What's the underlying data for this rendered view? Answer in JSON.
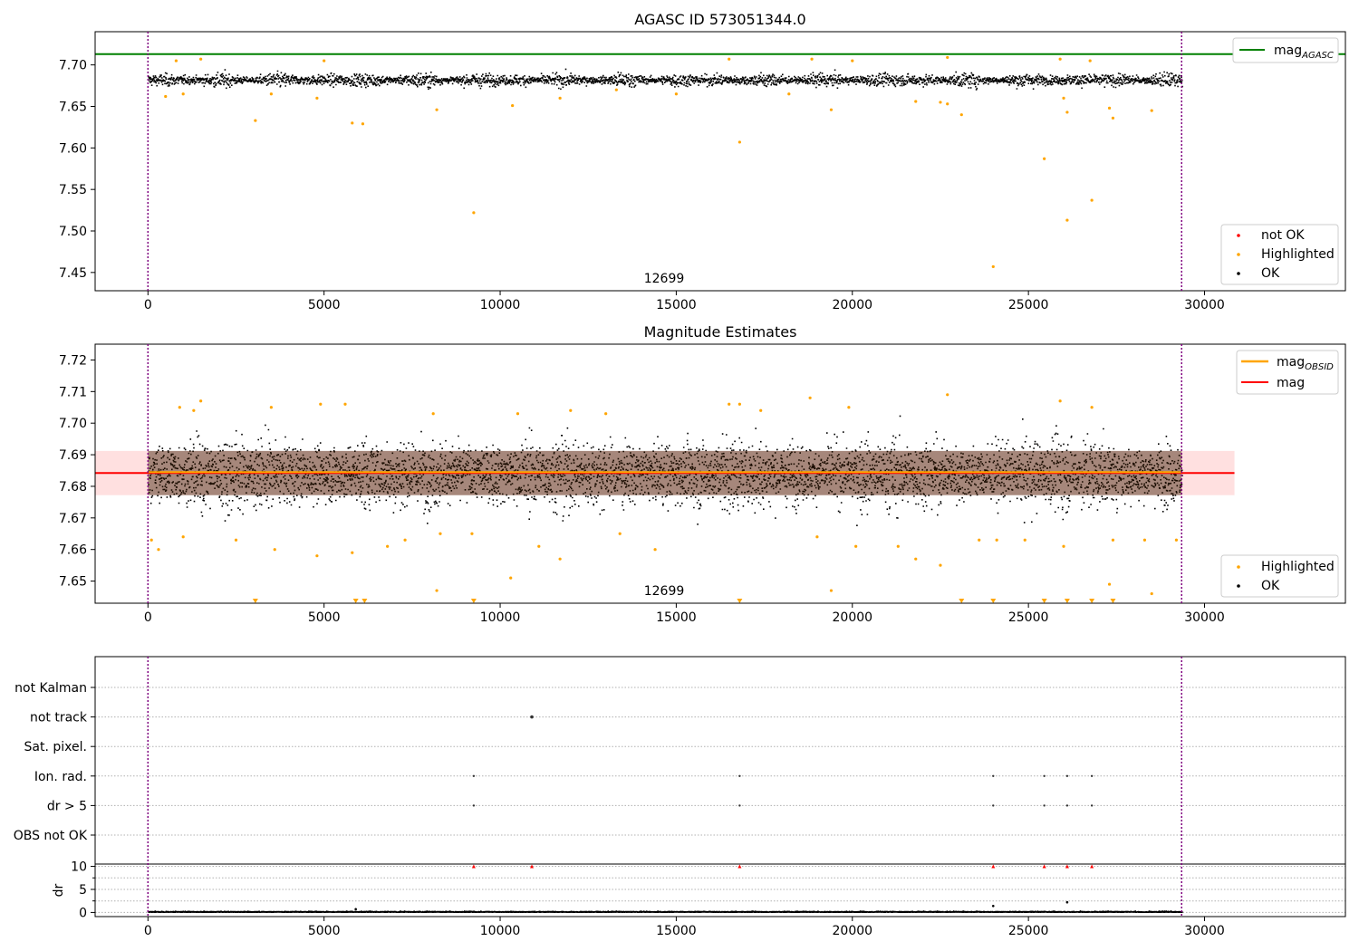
{
  "figure": {
    "title": "AGASC ID 573051344.0",
    "x_ticks": [
      0,
      5000,
      10000,
      15000,
      20000,
      25000,
      30000
    ],
    "x_range": [
      -1500,
      34000
    ],
    "obs_boundaries": [
      0,
      29350
    ]
  },
  "chart_data": [
    {
      "id": "top",
      "type": "scatter",
      "title": "AGASC ID 573051344.0",
      "xlim": [
        -1500,
        34000
      ],
      "ylim": [
        7.428,
        7.74
      ],
      "y_ticks": [
        "7.45",
        "7.50",
        "7.55",
        "7.60",
        "7.65",
        "7.70"
      ],
      "annotation": "12699",
      "hline": {
        "label": "mag",
        "subscript": "AGASC",
        "value": 7.713,
        "color": "#008000"
      },
      "band": {
        "center": 7.6825,
        "halfwidth": 0.009,
        "x_start": 0,
        "x_end": 29350
      },
      "highlighted": [
        [
          500,
          7.662
        ],
        [
          1000,
          7.665
        ],
        [
          3050,
          7.633
        ],
        [
          3500,
          7.665
        ],
        [
          4800,
          7.66
        ],
        [
          5800,
          7.63
        ],
        [
          6100,
          7.629
        ],
        [
          8200,
          7.646
        ],
        [
          9250,
          7.522
        ],
        [
          10350,
          7.651
        ],
        [
          11700,
          7.66
        ],
        [
          13300,
          7.67
        ],
        [
          15000,
          7.665
        ],
        [
          16800,
          7.607
        ],
        [
          18200,
          7.665
        ],
        [
          19400,
          7.646
        ],
        [
          21800,
          7.656
        ],
        [
          22500,
          7.655
        ],
        [
          22700,
          7.653
        ],
        [
          23100,
          7.64
        ],
        [
          24000,
          7.457
        ],
        [
          25450,
          7.587
        ],
        [
          26000,
          7.66
        ],
        [
          26100,
          7.643
        ],
        [
          26100,
          7.513
        ],
        [
          26800,
          7.537
        ],
        [
          27300,
          7.648
        ],
        [
          27400,
          7.636
        ],
        [
          28500,
          7.645
        ],
        [
          800,
          7.705
        ],
        [
          1500,
          7.707
        ],
        [
          5000,
          7.705
        ],
        [
          16500,
          7.707
        ],
        [
          18850,
          7.707
        ],
        [
          20000,
          7.705
        ],
        [
          22700,
          7.709
        ],
        [
          25900,
          7.707
        ],
        [
          26750,
          7.705
        ]
      ],
      "legends": [
        {
          "position": "top-right",
          "items": [
            {
              "label": "mag",
              "subscript": "AGASC",
              "kind": "line",
              "color": "#008000"
            }
          ]
        },
        {
          "position": "bottom-right",
          "items": [
            {
              "label": "not OK",
              "kind": "marker",
              "color": "#ff0000"
            },
            {
              "label": "Highlighted",
              "kind": "marker",
              "color": "#ffa500"
            },
            {
              "label": "OK",
              "kind": "marker",
              "color": "#000000"
            }
          ]
        }
      ]
    },
    {
      "id": "middle",
      "type": "scatter",
      "title": "Magnitude Estimates",
      "xlim": [
        -1500,
        34000
      ],
      "ylim": [
        7.643,
        7.725
      ],
      "y_ticks": [
        "7.65",
        "7.66",
        "7.67",
        "7.68",
        "7.69",
        "7.70",
        "7.71",
        "7.72"
      ],
      "annotation": "12699",
      "mag_line": {
        "label": "mag",
        "value": 7.6842,
        "color": "#ff0000"
      },
      "mag_obsid_line": {
        "label": "mag",
        "subscript": "OBSID",
        "value": 7.6842,
        "x_start": 0,
        "x_end": 29350,
        "color": "#ffa500"
      },
      "band": {
        "center": 7.6842,
        "halfwidth": 0.007,
        "x_start": -1500,
        "x_end": 30850
      },
      "highlighted": [
        [
          100,
          7.663
        ],
        [
          300,
          7.66
        ],
        [
          900,
          7.705
        ],
        [
          1000,
          7.664
        ],
        [
          1300,
          7.704
        ],
        [
          1500,
          7.707
        ],
        [
          2500,
          7.663
        ],
        [
          3500,
          7.705
        ],
        [
          3600,
          7.66
        ],
        [
          4800,
          7.658
        ],
        [
          4900,
          7.706
        ],
        [
          5600,
          7.706
        ],
        [
          5800,
          7.659
        ],
        [
          6800,
          7.661
        ],
        [
          7300,
          7.663
        ],
        [
          8100,
          7.703
        ],
        [
          8300,
          7.665
        ],
        [
          9200,
          7.665
        ],
        [
          10300,
          7.651
        ],
        [
          10500,
          7.703
        ],
        [
          11100,
          7.661
        ],
        [
          11700,
          7.657
        ],
        [
          12000,
          7.704
        ],
        [
          13000,
          7.703
        ],
        [
          13400,
          7.665
        ],
        [
          14400,
          7.66
        ],
        [
          16500,
          7.706
        ],
        [
          16800,
          7.706
        ],
        [
          17400,
          7.704
        ],
        [
          18800,
          7.708
        ],
        [
          19000,
          7.664
        ],
        [
          19400,
          7.647
        ],
        [
          19900,
          7.705
        ],
        [
          20100,
          7.661
        ],
        [
          21300,
          7.661
        ],
        [
          21800,
          7.657
        ],
        [
          22500,
          7.655
        ],
        [
          22700,
          7.709
        ],
        [
          23600,
          7.663
        ],
        [
          24100,
          7.663
        ],
        [
          24900,
          7.663
        ],
        [
          25900,
          7.707
        ],
        [
          26000,
          7.661
        ],
        [
          26800,
          7.705
        ],
        [
          27400,
          7.663
        ],
        [
          28300,
          7.663
        ],
        [
          28500,
          7.646
        ],
        [
          27300,
          7.649
        ],
        [
          8200,
          7.647
        ],
        [
          29200,
          7.663
        ]
      ],
      "lower_limit_markers": [
        3050,
        5900,
        6150,
        9250,
        16800,
        23100,
        24000,
        25450,
        26100,
        26800,
        27400
      ],
      "legends": [
        {
          "position": "top-right",
          "items": [
            {
              "label": "mag",
              "subscript": "OBSID",
              "kind": "line",
              "color": "#ffa500"
            },
            {
              "label": "mag",
              "kind": "line",
              "color": "#ff0000"
            }
          ]
        },
        {
          "position": "bottom-right",
          "items": [
            {
              "label": "Highlighted",
              "kind": "marker",
              "color": "#ffa500"
            },
            {
              "label": "OK",
              "kind": "marker",
              "color": "#000000"
            }
          ]
        }
      ]
    },
    {
      "id": "flags",
      "type": "scatter",
      "xlim": [
        -1500,
        34000
      ],
      "categories": [
        "not Kalman",
        "not track",
        "Sat. pixel.",
        "Ion. rad.",
        "dr > 5",
        "OBS not OK"
      ],
      "points": [
        {
          "category": "not track",
          "x": [
            10900
          ]
        },
        {
          "category": "Ion. rad.",
          "x": [
            9250,
            16800,
            24000,
            25450,
            26100,
            26800
          ]
        },
        {
          "category": "dr > 5",
          "x": [
            9250,
            16800,
            24000,
            25450,
            26100,
            26800
          ]
        }
      ]
    },
    {
      "id": "dr",
      "type": "scatter",
      "ylabel": "dr",
      "xlim": [
        -1500,
        34000
      ],
      "ylim": [
        -0.5,
        10.5
      ],
      "y_ticks": [
        "0",
        "5",
        "10"
      ],
      "x_ticks": [
        "0",
        "5000",
        "10000",
        "15000",
        "20000",
        "25000",
        "30000"
      ],
      "clipped_markers": [
        9250,
        10900,
        16800,
        24000,
        25450,
        26100,
        26800
      ],
      "outliers": [
        [
          24000,
          1.4
        ],
        [
          26100,
          2.2
        ],
        [
          5900,
          0.7
        ]
      ]
    }
  ]
}
